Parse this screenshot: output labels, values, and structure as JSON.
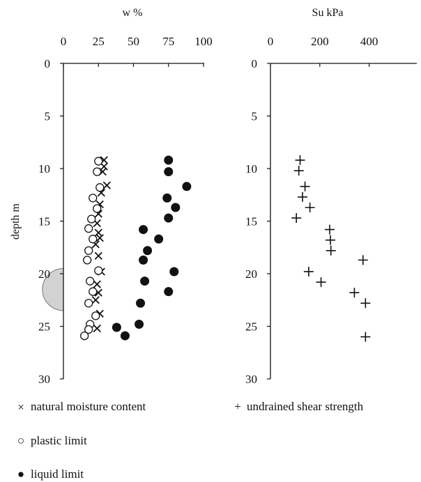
{
  "chart_data": [
    {
      "type": "scatter",
      "xlabel": "w %",
      "ylabel": "depth m",
      "xlim": [
        0,
        100
      ],
      "ylim": [
        0,
        30
      ],
      "x_ticks": [
        0,
        25,
        50,
        75,
        100
      ],
      "y_ticks": [
        0,
        5,
        10,
        15,
        20,
        25,
        30
      ],
      "x_axis_position": "top",
      "y_inverted": true,
      "grid": false,
      "legend_position": "bottom-left",
      "annotation": "shaded semicircle on the depth axis, approx. 19.5 m to 23.5 m",
      "annotation_range": [
        19.5,
        23.5
      ],
      "series": [
        {
          "name": "natural moisture content",
          "marker": "x",
          "points": [
            {
              "x": 29,
              "y": 9.2
            },
            {
              "x": 29,
              "y": 9.8
            },
            {
              "x": 28,
              "y": 10.3
            },
            {
              "x": 31,
              "y": 11.6
            },
            {
              "x": 27,
              "y": 12.3
            },
            {
              "x": 26,
              "y": 13.4
            },
            {
              "x": 25,
              "y": 14.3
            },
            {
              "x": 24,
              "y": 15.2
            },
            {
              "x": 25,
              "y": 16.1
            },
            {
              "x": 26,
              "y": 16.6
            },
            {
              "x": 23,
              "y": 17.2
            },
            {
              "x": 25,
              "y": 18.3
            },
            {
              "x": 27,
              "y": 19.8
            },
            {
              "x": 24,
              "y": 21.0
            },
            {
              "x": 25,
              "y": 21.8
            },
            {
              "x": 23,
              "y": 22.5
            },
            {
              "x": 26,
              "y": 23.8
            },
            {
              "x": 24,
              "y": 25.2
            }
          ]
        },
        {
          "name": "plastic limit",
          "marker": "open-circle",
          "points": [
            {
              "x": 25,
              "y": 9.3
            },
            {
              "x": 24,
              "y": 10.3
            },
            {
              "x": 26,
              "y": 11.8
            },
            {
              "x": 21,
              "y": 12.8
            },
            {
              "x": 24,
              "y": 13.8
            },
            {
              "x": 20,
              "y": 14.8
            },
            {
              "x": 18,
              "y": 15.7
            },
            {
              "x": 21,
              "y": 16.7
            },
            {
              "x": 18,
              "y": 17.8
            },
            {
              "x": 17,
              "y": 18.7
            },
            {
              "x": 25,
              "y": 19.7
            },
            {
              "x": 19,
              "y": 20.7
            },
            {
              "x": 21,
              "y": 21.7
            },
            {
              "x": 18,
              "y": 22.8
            },
            {
              "x": 23,
              "y": 24.0
            },
            {
              "x": 19,
              "y": 24.8
            },
            {
              "x": 18,
              "y": 25.3
            },
            {
              "x": 15,
              "y": 25.9
            }
          ]
        },
        {
          "name": "liquid limit",
          "marker": "filled-circle",
          "points": [
            {
              "x": 75,
              "y": 9.2
            },
            {
              "x": 75,
              "y": 10.3
            },
            {
              "x": 88,
              "y": 11.7
            },
            {
              "x": 74,
              "y": 12.8
            },
            {
              "x": 80,
              "y": 13.7
            },
            {
              "x": 75,
              "y": 14.7
            },
            {
              "x": 57,
              "y": 15.8
            },
            {
              "x": 68,
              "y": 16.7
            },
            {
              "x": 60,
              "y": 17.8
            },
            {
              "x": 57,
              "y": 18.7
            },
            {
              "x": 79,
              "y": 19.8
            },
            {
              "x": 58,
              "y": 20.7
            },
            {
              "x": 75,
              "y": 21.7
            },
            {
              "x": 55,
              "y": 22.8
            },
            {
              "x": 54,
              "y": 24.8
            },
            {
              "x": 38,
              "y": 25.1
            },
            {
              "x": 44,
              "y": 25.9
            }
          ]
        }
      ]
    },
    {
      "type": "scatter",
      "xlabel": "Su kPa",
      "ylabel": "",
      "xlim": [
        0,
        480
      ],
      "ylim": [
        0,
        30
      ],
      "x_ticks": [
        0,
        200,
        400
      ],
      "y_ticks": [
        0,
        5,
        10,
        15,
        20,
        25,
        30
      ],
      "x_axis_position": "top",
      "y_inverted": true,
      "grid": false,
      "legend_position": "bottom",
      "series": [
        {
          "name": "undrained shear strength",
          "marker": "plus",
          "points": [
            {
              "x": 120,
              "y": 9.2
            },
            {
              "x": 115,
              "y": 10.2
            },
            {
              "x": 140,
              "y": 11.7
            },
            {
              "x": 130,
              "y": 12.7
            },
            {
              "x": 160,
              "y": 13.7
            },
            {
              "x": 105,
              "y": 14.7
            },
            {
              "x": 240,
              "y": 15.8
            },
            {
              "x": 243,
              "y": 16.8
            },
            {
              "x": 245,
              "y": 17.8
            },
            {
              "x": 375,
              "y": 18.7
            },
            {
              "x": 155,
              "y": 19.8
            },
            {
              "x": 205,
              "y": 20.8
            },
            {
              "x": 340,
              "y": 21.8
            },
            {
              "x": 385,
              "y": 22.8
            },
            {
              "x": 385,
              "y": 26.0
            }
          ]
        }
      ]
    }
  ],
  "legend": [
    {
      "symbol": "×",
      "label": "natural moisture content"
    },
    {
      "symbol": "+",
      "label": "undrained shear strength"
    },
    {
      "symbol": "○",
      "label": "plastic limit"
    },
    {
      "symbol": "●",
      "label": "liquid limit"
    }
  ]
}
